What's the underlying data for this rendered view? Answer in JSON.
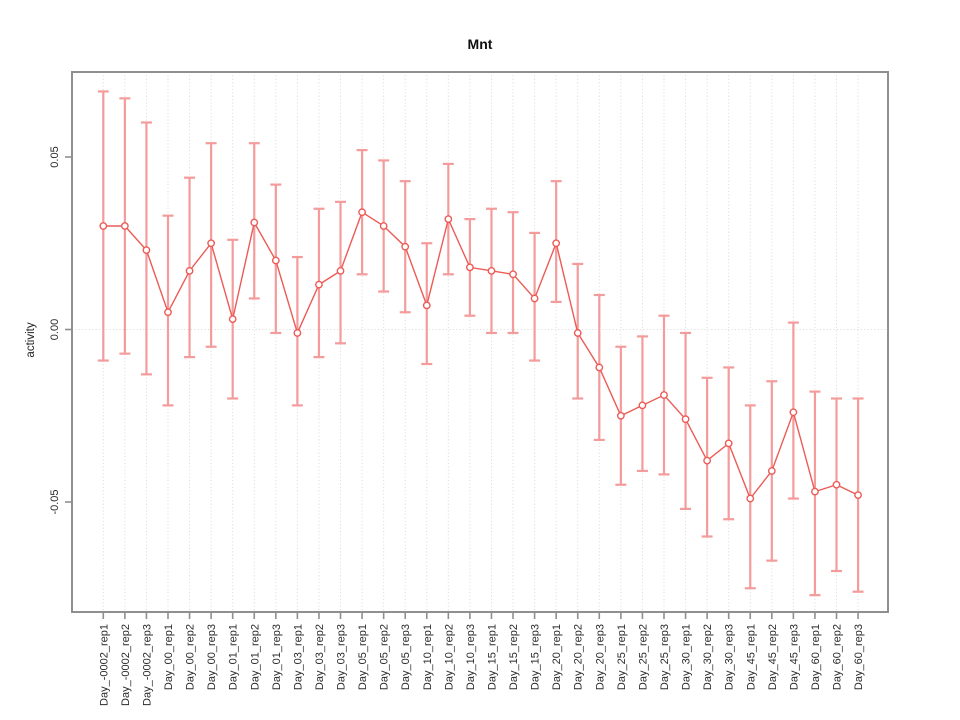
{
  "chart_data": {
    "type": "scatter",
    "title": "Mnt",
    "xlabel": "",
    "ylabel": "activity",
    "legend": "none",
    "grid": "dotted vertical gridline at every category; dotted horizontal line at y=0",
    "ylim": [
      -0.082,
      0.075
    ],
    "yticks": [
      0.05,
      0.0,
      -0.05
    ],
    "ytick_labels": [
      "0.05",
      "0.00",
      "-0.05"
    ],
    "categories": [
      "Day_-0002_rep1",
      "Day_-0002_rep2",
      "Day_-0002_rep3",
      "Day_00_rep1",
      "Day_00_rep2",
      "Day_00_rep3",
      "Day_01_rep1",
      "Day_01_rep2",
      "Day_01_rep3",
      "Day_03_rep1",
      "Day_03_rep2",
      "Day_03_rep3",
      "Day_05_rep1",
      "Day_05_rep2",
      "Day_05_rep3",
      "Day_10_rep1",
      "Day_10_rep2",
      "Day_10_rep3",
      "Day_15_rep1",
      "Day_15_rep2",
      "Day_15_rep3",
      "Day_20_rep1",
      "Day_20_rep2",
      "Day_20_rep3",
      "Day_25_rep1",
      "Day_25_rep2",
      "Day_25_rep3",
      "Day_30_rep1",
      "Day_30_rep2",
      "Day_30_rep3",
      "Day_45_rep1",
      "Day_45_rep2",
      "Day_45_rep3",
      "Day_60_rep1",
      "Day_60_rep2",
      "Day_60_rep3"
    ],
    "series": [
      {
        "name": "activity",
        "values": [
          0.03,
          0.03,
          0.023,
          0.005,
          0.017,
          0.025,
          0.003,
          0.031,
          0.02,
          -0.001,
          0.013,
          0.017,
          0.034,
          0.03,
          0.024,
          0.007,
          0.032,
          0.018,
          0.017,
          0.016,
          0.009,
          0.025,
          -0.001,
          -0.011,
          -0.025,
          -0.022,
          -0.019,
          -0.026,
          -0.038,
          -0.033,
          -0.049,
          -0.041,
          -0.024,
          -0.047,
          -0.045,
          -0.048
        ],
        "error_low": [
          -0.009,
          -0.007,
          -0.013,
          -0.022,
          -0.008,
          -0.005,
          -0.02,
          0.009,
          -0.001,
          -0.022,
          -0.008,
          -0.004,
          0.016,
          0.011,
          0.005,
          -0.01,
          0.016,
          0.004,
          -0.001,
          -0.001,
          -0.009,
          0.008,
          -0.02,
          -0.032,
          -0.045,
          -0.041,
          -0.042,
          -0.052,
          -0.06,
          -0.055,
          -0.075,
          -0.067,
          -0.049,
          -0.077,
          -0.07,
          -0.076
        ],
        "error_high": [
          0.069,
          0.067,
          0.06,
          0.033,
          0.044,
          0.054,
          0.026,
          0.054,
          0.042,
          0.021,
          0.035,
          0.037,
          0.052,
          0.049,
          0.043,
          0.025,
          0.048,
          0.032,
          0.035,
          0.034,
          0.028,
          0.043,
          0.019,
          0.01,
          -0.005,
          -0.002,
          0.004,
          -0.001,
          -0.014,
          -0.011,
          -0.022,
          -0.015,
          0.002,
          -0.018,
          -0.02,
          -0.02
        ]
      }
    ],
    "colors": {
      "error_bar": "#F49B9B",
      "line": "#EC5B56",
      "point_stroke": "#EC5B56",
      "point_fill": "#FFFFFF",
      "grid": "#D8D8D8",
      "box": "#8F8F8F",
      "tick": "#8F8F8F",
      "text": "#2B2B2B"
    }
  }
}
